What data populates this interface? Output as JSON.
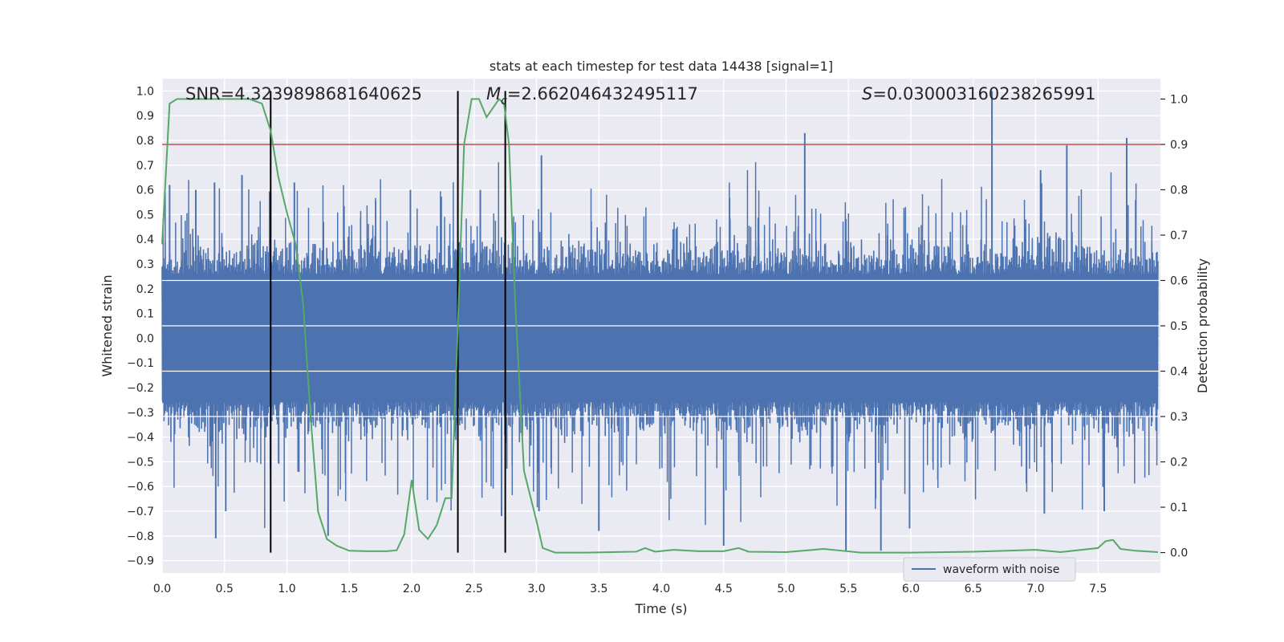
{
  "chart_data": {
    "type": "line",
    "title": "stats at each timestep for test data 14438 [signal=1]",
    "xlabel": "Time (s)",
    "ylabel": "Whitened strain",
    "ylabel_right": "Detection probability",
    "xlim": [
      0.0,
      8.0
    ],
    "ylim": [
      -0.95,
      1.05
    ],
    "ylim_right": [
      -0.045,
      1.045
    ],
    "x_ticks": [
      "0.0",
      "0.5",
      "1.0",
      "1.5",
      "2.0",
      "2.5",
      "3.0",
      "3.5",
      "4.0",
      "4.5",
      "5.0",
      "5.5",
      "6.0",
      "6.5",
      "7.0",
      "7.5"
    ],
    "y_ticks": [
      "-0.9",
      "-0.8",
      "-0.7",
      "-0.6",
      "-0.5",
      "-0.4",
      "-0.3",
      "-0.2",
      "-0.1",
      "0.0",
      "0.1",
      "0.2",
      "0.3",
      "0.4",
      "0.5",
      "0.6",
      "0.7",
      "0.8",
      "0.9",
      "1.0"
    ],
    "y_ticks_right": [
      "0.0",
      "0.1",
      "0.2",
      "0.3",
      "0.4",
      "0.5",
      "0.6",
      "0.7",
      "0.8",
      "0.9",
      "1.0"
    ],
    "grid": true,
    "annotations": {
      "snr": "SNR=4.3239898681640625",
      "mc_symbol": "M",
      "mc_sub": "c",
      "mc_value": "=2.662046432495117",
      "s_symbol": "S",
      "s_value": "=0.030003160238265991"
    },
    "threshold": {
      "value": 0.9,
      "axis": "right",
      "color": "#c44e52"
    },
    "vlines": [
      0.87,
      2.37,
      2.75
    ],
    "legend": {
      "label": "waveform with noise",
      "position": "lower right"
    },
    "series": [
      {
        "name": "waveform with noise",
        "axis": "left",
        "color": "#4c72b0",
        "x_range": [
          0.0,
          7.98
        ],
        "envelope_pos": 0.45,
        "envelope_neg": -0.45,
        "peaks": [
          {
            "x": 0.06,
            "y": 0.62
          },
          {
            "x": 0.27,
            "y": 0.6
          },
          {
            "x": 0.42,
            "y": 0.63
          },
          {
            "x": 0.43,
            "y": -0.81
          },
          {
            "x": 0.51,
            "y": -0.7
          },
          {
            "x": 0.64,
            "y": 0.66
          },
          {
            "x": 1.06,
            "y": 0.63
          },
          {
            "x": 1.09,
            "y": -0.54
          },
          {
            "x": 1.33,
            "y": -0.8
          },
          {
            "x": 1.99,
            "y": 0.6
          },
          {
            "x": 2.55,
            "y": 0.6
          },
          {
            "x": 2.72,
            "y": -0.72
          },
          {
            "x": 3.02,
            "y": -0.7
          },
          {
            "x": 3.04,
            "y": 0.74
          },
          {
            "x": 3.5,
            "y": -0.78
          },
          {
            "x": 4.5,
            "y": -0.84
          },
          {
            "x": 5.15,
            "y": 0.83
          },
          {
            "x": 5.48,
            "y": -0.86
          },
          {
            "x": 5.76,
            "y": -0.86
          },
          {
            "x": 5.99,
            "y": -0.77
          },
          {
            "x": 6.65,
            "y": 1.0
          },
          {
            "x": 7.07,
            "y": -0.71
          },
          {
            "x": 7.25,
            "y": 0.78
          },
          {
            "x": 7.73,
            "y": 0.81
          },
          {
            "x": 7.04,
            "y": 0.68
          },
          {
            "x": 7.55,
            "y": -0.7
          }
        ]
      },
      {
        "name": "",
        "axis": "right",
        "color": "#55a868",
        "points": [
          [
            0.0,
            0.68
          ],
          [
            0.06,
            0.99
          ],
          [
            0.12,
            1.0
          ],
          [
            0.3,
            1.0
          ],
          [
            0.5,
            1.0
          ],
          [
            0.7,
            1.0
          ],
          [
            0.8,
            0.99
          ],
          [
            0.87,
            0.93
          ],
          [
            0.93,
            0.83
          ],
          [
            1.0,
            0.75
          ],
          [
            1.07,
            0.68
          ],
          [
            1.13,
            0.55
          ],
          [
            1.19,
            0.3
          ],
          [
            1.25,
            0.09
          ],
          [
            1.32,
            0.03
          ],
          [
            1.4,
            0.015
          ],
          [
            1.5,
            0.004
          ],
          [
            1.65,
            0.003
          ],
          [
            1.8,
            0.003
          ],
          [
            1.88,
            0.005
          ],
          [
            1.94,
            0.04
          ],
          [
            2.0,
            0.16
          ],
          [
            2.06,
            0.05
          ],
          [
            2.13,
            0.03
          ],
          [
            2.2,
            0.06
          ],
          [
            2.27,
            0.12
          ],
          [
            2.32,
            0.12
          ],
          [
            2.37,
            0.5
          ],
          [
            2.42,
            0.9
          ],
          [
            2.48,
            1.0
          ],
          [
            2.54,
            1.0
          ],
          [
            2.6,
            0.96
          ],
          [
            2.7,
            1.0
          ],
          [
            2.74,
            0.99
          ],
          [
            2.78,
            0.9
          ],
          [
            2.83,
            0.55
          ],
          [
            2.9,
            0.18
          ],
          [
            3.0,
            0.07
          ],
          [
            3.05,
            0.01
          ],
          [
            3.15,
            0.0
          ],
          [
            3.4,
            0.0
          ],
          [
            3.8,
            0.002
          ],
          [
            3.87,
            0.01
          ],
          [
            3.95,
            0.002
          ],
          [
            4.1,
            0.006
          ],
          [
            4.3,
            0.003
          ],
          [
            4.5,
            0.003
          ],
          [
            4.62,
            0.01
          ],
          [
            4.7,
            0.002
          ],
          [
            5.0,
            0.001
          ],
          [
            5.3,
            0.008
          ],
          [
            5.45,
            0.004
          ],
          [
            5.6,
            0.0
          ],
          [
            6.0,
            0.0
          ],
          [
            6.5,
            0.002
          ],
          [
            7.0,
            0.006
          ],
          [
            7.2,
            0.001
          ],
          [
            7.5,
            0.01
          ],
          [
            7.56,
            0.025
          ],
          [
            7.62,
            0.028
          ],
          [
            7.68,
            0.008
          ],
          [
            7.8,
            0.004
          ],
          [
            7.98,
            0.001
          ]
        ]
      }
    ]
  }
}
